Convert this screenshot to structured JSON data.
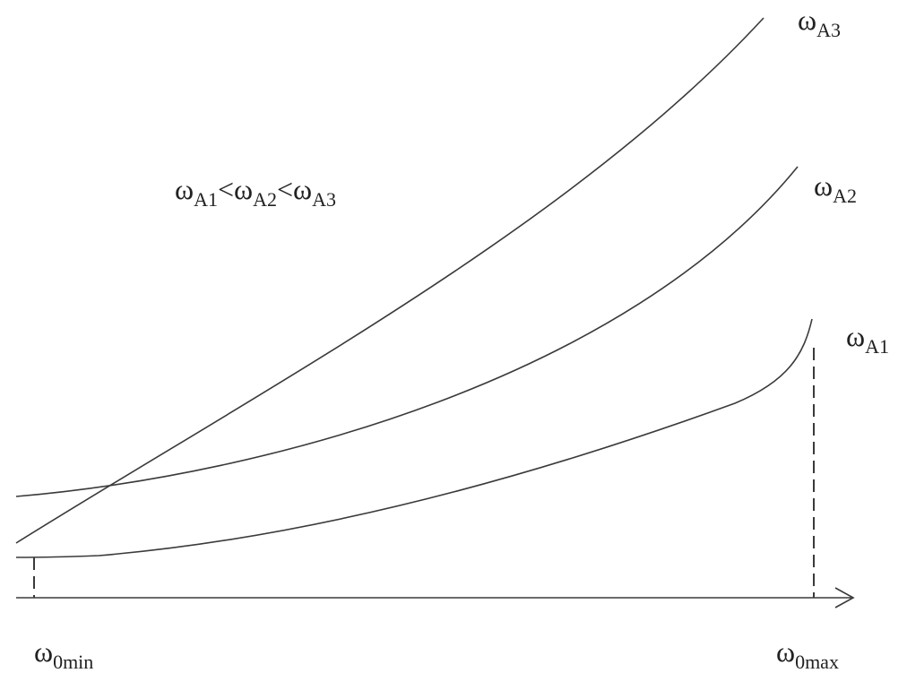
{
  "diagram": {
    "curves": [
      {
        "id": "A3",
        "label_symbol": "ω",
        "label_subscript": "A3"
      },
      {
        "id": "A2",
        "label_symbol": "ω",
        "label_subscript": "A2"
      },
      {
        "id": "A1",
        "label_symbol": "ω",
        "label_subscript": "A1"
      }
    ],
    "inequality": [
      {
        "symbol": "ω",
        "subscript": "A1"
      },
      {
        "op": "<"
      },
      {
        "symbol": "ω",
        "subscript": "A2"
      },
      {
        "op": "<"
      },
      {
        "symbol": "ω",
        "subscript": "A3"
      }
    ],
    "x_axis": {
      "min_label_symbol": "ω",
      "min_label_subscript": "0min",
      "max_label_symbol": "ω",
      "max_label_subscript": "0max"
    }
  }
}
